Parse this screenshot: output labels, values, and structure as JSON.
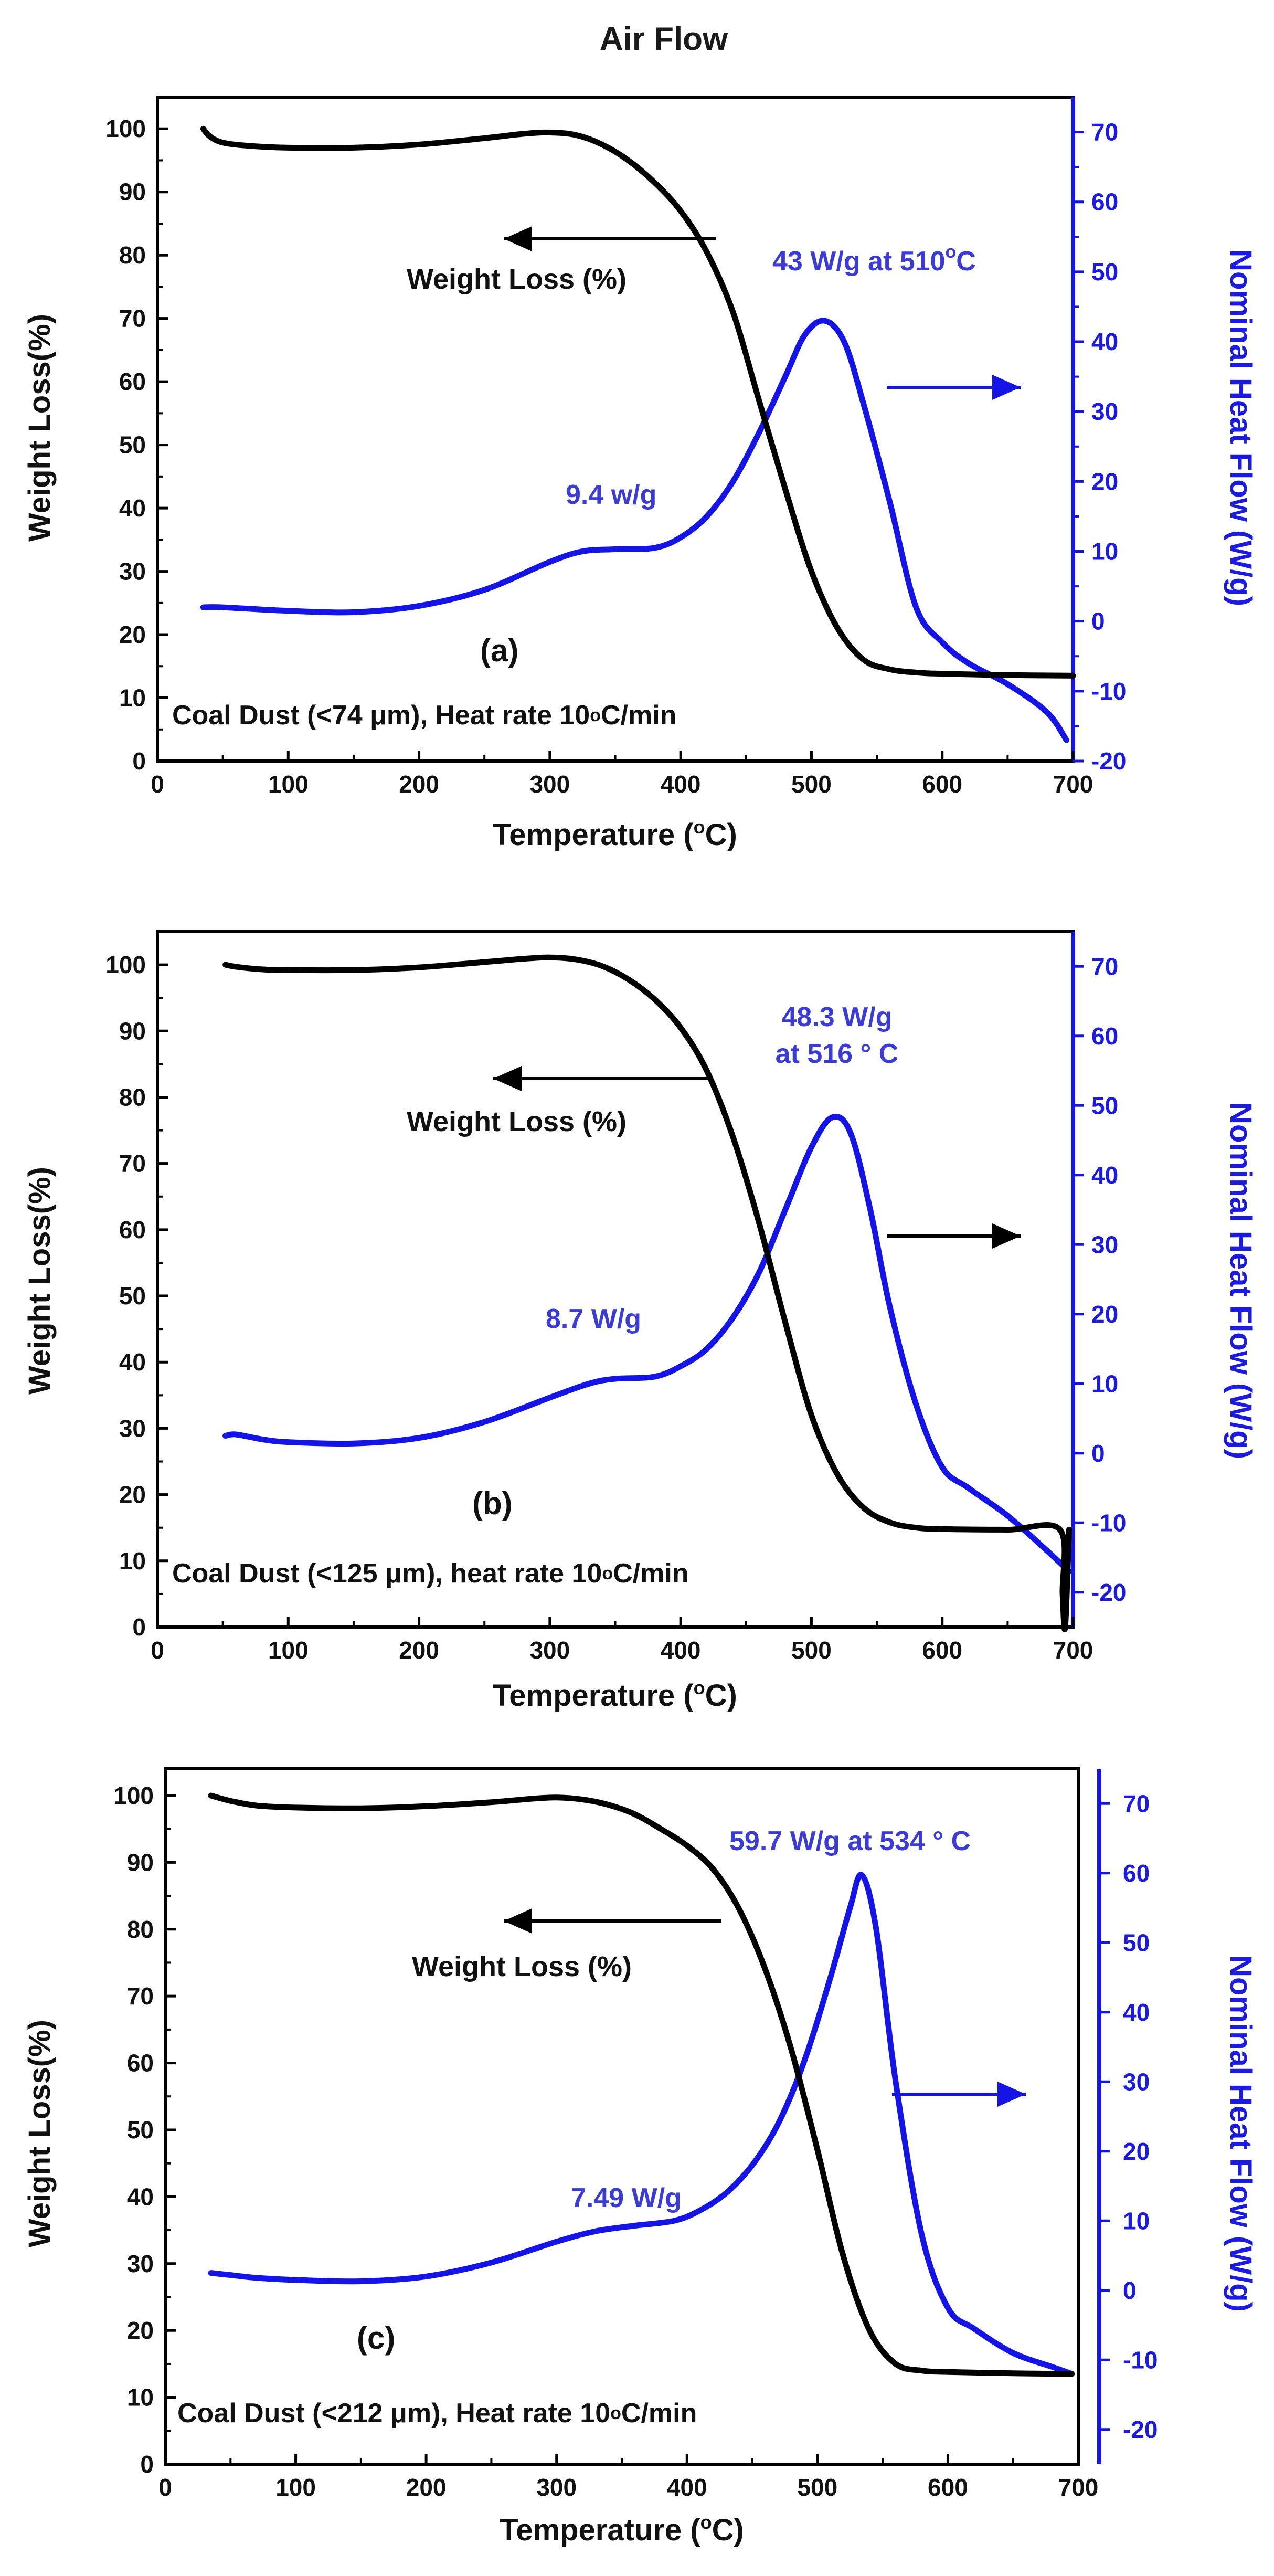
{
  "title": "Air Flow",
  "colors": {
    "weight": "#000000",
    "heat": "#1414e6",
    "axis_right": "#1a1ae0",
    "annot_blue": "#3b3bd6"
  },
  "chart_data": [
    {
      "type": "line",
      "panel": "(a)",
      "caption_main": "Coal  Dust (<74 μm), Heat rate 10",
      "caption_unit": "C/min",
      "xlabel": "Temperature (",
      "xlabel_unit": "C)",
      "ylabel_left": "Weight Loss(%)",
      "ylabel_right": "Nominal Heat Flow (W/g)",
      "xlim": [
        0,
        700
      ],
      "ylim_left": [
        0,
        105
      ],
      "ylim_right": [
        -20,
        75
      ],
      "xticks": [
        "0",
        "100",
        "200",
        "300",
        "400",
        "500",
        "600",
        "700"
      ],
      "yticks_left": [
        "0",
        "10",
        "20",
        "30",
        "40",
        "50",
        "60",
        "70",
        "80",
        "90",
        "100"
      ],
      "yticks_right": [
        "-20",
        "-10",
        "0",
        "10",
        "20",
        "30",
        "40",
        "50",
        "60",
        "70"
      ],
      "series": [
        {
          "name": "Weight Loss (%)",
          "axis": "left",
          "color": "#000000",
          "x": [
            35,
            40,
            50,
            70,
            100,
            150,
            200,
            250,
            280,
            300,
            320,
            340,
            360,
            380,
            400,
            420,
            440,
            460,
            480,
            500,
            520,
            540,
            560,
            580,
            600,
            650,
            700
          ],
          "y": [
            100,
            98.8,
            97.8,
            97.3,
            97,
            97,
            97.5,
            98.5,
            99.2,
            99.4,
            99,
            97.5,
            95,
            91.5,
            87,
            80.5,
            71,
            57,
            43,
            30,
            21,
            16,
            14.5,
            14,
            13.8,
            13.6,
            13.5
          ]
        },
        {
          "name": "Nominal Heat Flow (W/g)",
          "axis": "right",
          "color": "#1414e6",
          "x": [
            35,
            50,
            100,
            150,
            200,
            250,
            300,
            325,
            350,
            380,
            400,
            420,
            440,
            460,
            480,
            495,
            510,
            525,
            540,
            560,
            580,
            600,
            620,
            650,
            680,
            695
          ],
          "y": [
            2,
            2,
            1.5,
            1.3,
            2.2,
            4.5,
            8.5,
            10,
            10.3,
            10.5,
            12,
            15,
            20,
            27,
            35,
            41,
            43,
            40,
            31,
            17,
            2,
            -3,
            -6,
            -9,
            -13,
            -17
          ]
        }
      ],
      "annotations": {
        "weight_label": "Weight Loss (%)",
        "peak_label_main": "43 W/g at 510",
        "peak_label_unit": "C",
        "shoulder_label": "9.4 w/g"
      }
    },
    {
      "type": "line",
      "panel": "(b)",
      "caption_main": "Coal  Dust (<125 μm), heat rate 10",
      "caption_unit": "C/min",
      "xlabel": "Temperature (",
      "xlabel_unit": "C)",
      "ylabel_left": "Weight Loss(%)",
      "ylabel_right": "Nominal Heat Flow (W/g)",
      "xlim": [
        0,
        700
      ],
      "ylim_left": [
        0,
        105
      ],
      "ylim_right": [
        -25,
        75
      ],
      "xticks": [
        "0",
        "100",
        "200",
        "300",
        "400",
        "500",
        "600",
        "700"
      ],
      "yticks_left": [
        "0",
        "10",
        "20",
        "30",
        "40",
        "50",
        "60",
        "70",
        "80",
        "90",
        "100"
      ],
      "yticks_right": [
        "-20",
        "-10",
        "0",
        "10",
        "20",
        "30",
        "40",
        "50",
        "60",
        "70"
      ],
      "series": [
        {
          "name": "Weight Loss (%)",
          "axis": "left",
          "color": "#000000",
          "x": [
            52,
            60,
            80,
            100,
            150,
            200,
            250,
            280,
            300,
            320,
            340,
            360,
            380,
            400,
            420,
            440,
            460,
            480,
            500,
            520,
            540,
            560,
            580,
            600,
            650,
            690,
            692,
            694,
            697
          ],
          "y": [
            100,
            99.7,
            99.3,
            99.2,
            99.2,
            99.6,
            100.4,
            100.9,
            101.1,
            100.8,
            99.8,
            97.8,
            94.8,
            90.5,
            84,
            74,
            61,
            46,
            32,
            23,
            18,
            15.8,
            15,
            14.8,
            14.7,
            14.7,
            5,
            0,
            14.7
          ]
        },
        {
          "name": "Nominal Heat Flow (W/g)",
          "axis": "right",
          "color": "#1414e6",
          "x": [
            52,
            60,
            80,
            100,
            150,
            200,
            250,
            300,
            330,
            350,
            380,
            400,
            420,
            440,
            460,
            480,
            500,
            516,
            530,
            545,
            560,
            580,
            600,
            620,
            650,
            680,
            697
          ],
          "y": [
            2.5,
            2.7,
            2.0,
            1.6,
            1.4,
            2.2,
            4.5,
            8,
            10,
            10.7,
            11,
            12.5,
            15,
            19.5,
            26,
            35,
            44,
            48.3,
            46,
            35,
            21,
            7,
            -2,
            -5,
            -9,
            -14,
            -17
          ]
        }
      ],
      "annotations": {
        "weight_label": "Weight Loss (%)",
        "peak_label_line1": "48.3 W/g",
        "peak_label_line2": "at 516 ° C",
        "shoulder_label": "8.7 W/g"
      }
    },
    {
      "type": "line",
      "panel": "(c)",
      "caption_main": "Coal  Dust (<212 μm), Heat rate 10",
      "caption_unit": "C/min",
      "xlabel": "Temperature (",
      "xlabel_unit": "C)",
      "ylabel_left": "Weight Loss(%)",
      "ylabel_right": "Nominal Heat Flow (W/g)",
      "xlim": [
        0,
        700
      ],
      "ylim_left": [
        0,
        104
      ],
      "ylim_right": [
        -25,
        75
      ],
      "xticks": [
        "0",
        "100",
        "200",
        "300",
        "400",
        "500",
        "600",
        "700"
      ],
      "yticks_left": [
        "0",
        "10",
        "20",
        "30",
        "40",
        "50",
        "60",
        "70",
        "80",
        "90",
        "100"
      ],
      "yticks_right": [
        "-20",
        "-10",
        "0",
        "10",
        "20",
        "30",
        "40",
        "50",
        "60",
        "70"
      ],
      "series": [
        {
          "name": "Weight Loss (%)",
          "axis": "left",
          "color": "#000000",
          "x": [
            35,
            50,
            70,
            100,
            150,
            200,
            250,
            280,
            300,
            320,
            340,
            360,
            380,
            400,
            420,
            440,
            460,
            480,
            500,
            520,
            540,
            560,
            580,
            600,
            650,
            695
          ],
          "y": [
            100,
            99.2,
            98.5,
            98.2,
            98.1,
            98.4,
            99,
            99.5,
            99.7,
            99.4,
            98.6,
            97.2,
            95,
            92.5,
            89,
            83,
            74,
            62,
            47,
            31,
            20,
            15,
            14,
            13.8,
            13.6,
            13.5
          ]
        },
        {
          "name": "Nominal Heat Flow (W/g)",
          "axis": "right",
          "color": "#1414e6",
          "x": [
            35,
            50,
            70,
            100,
            150,
            200,
            250,
            300,
            330,
            360,
            390,
            410,
            430,
            450,
            470,
            490,
            510,
            525,
            534,
            545,
            560,
            580,
            600,
            620,
            650,
            680,
            695
          ],
          "y": [
            2.5,
            2.2,
            1.8,
            1.5,
            1.3,
            2.0,
            4,
            7,
            8.5,
            9.3,
            10,
            11.5,
            14,
            18,
            24,
            33,
            45,
            55,
            59.7,
            52,
            30,
            8,
            -2.5,
            -5.5,
            -9,
            -11,
            -12
          ]
        }
      ],
      "annotations": {
        "weight_label": "Weight Loss (%)",
        "peak_label": "59.7 W/g at 534 ° C",
        "shoulder_label": "7.49 W/g"
      }
    }
  ]
}
